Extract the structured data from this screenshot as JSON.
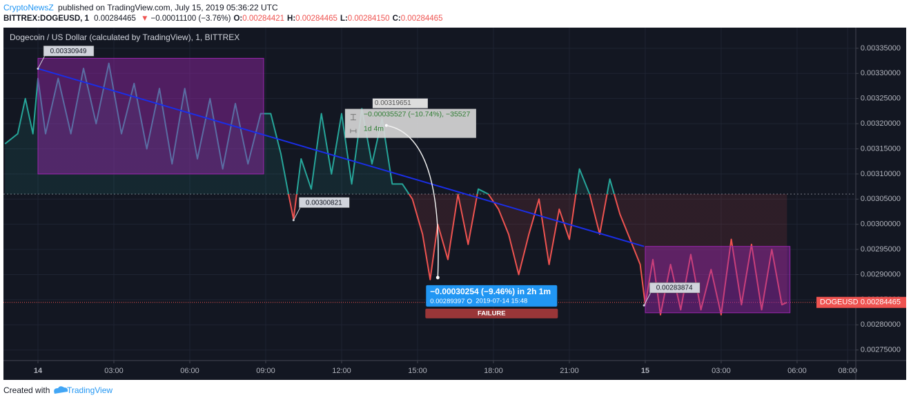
{
  "header": {
    "author": "CryptoNewsZ",
    "published": "published on TradingView.com, July 15, 2019 05:36:22 UTC",
    "symbol": "BITTREX:DOGEUSD, 1",
    "last": "0.00284465",
    "change": "−0.00011100 (−3.76%)",
    "ohlc": [
      {
        "label": "O:",
        "value": "0.00284421"
      },
      {
        "label": "H:",
        "value": "0.00284465"
      },
      {
        "label": "L:",
        "value": "0.00284150"
      },
      {
        "label": "C:",
        "value": "0.00284465"
      }
    ]
  },
  "chart_data": {
    "type": "line",
    "title": "Dogecoin / US Dollar (calculated by TradingView), 1, BITTREX",
    "x": [
      -1.3,
      -0.8,
      -0.5,
      -0.2,
      0,
      0.3,
      0.8,
      1.3,
      1.8,
      2.3,
      2.8,
      3.3,
      3.8,
      4.3,
      4.8,
      5.3,
      5.8,
      6.3,
      6.8,
      7.3,
      7.8,
      8.3,
      8.8,
      9.2,
      9.6,
      9.9,
      10.1,
      10.4,
      10.8,
      11.2,
      11.6,
      12.0,
      12.4,
      12.8,
      13.2,
      13.6,
      14.0,
      14.4,
      14.8,
      15.2,
      15.5,
      15.8,
      16.2,
      16.6,
      17.0,
      17.4,
      17.8,
      18.2,
      18.6,
      19.0,
      19.4,
      19.8,
      20.2,
      20.6,
      21.0,
      21.4,
      21.8,
      22.2,
      22.6,
      23.0,
      23.4,
      23.8,
      24.0,
      24.3,
      24.6,
      25.0,
      25.4,
      25.8,
      26.2,
      26.6,
      27.0,
      27.4,
      27.8,
      28.2,
      28.6,
      29.0,
      29.4,
      29.6
    ],
    "series": [
      {
        "name": "DOGEUSD",
        "color_above": "#26a69a",
        "color_below": "#ef5350",
        "values": [
          0.00316,
          0.00318,
          0.00325,
          0.00318,
          0.00329,
          0.00318,
          0.00329,
          0.00318,
          0.00331,
          0.0032,
          0.00332,
          0.00318,
          0.00328,
          0.00315,
          0.00327,
          0.00312,
          0.00327,
          0.00313,
          0.00325,
          0.00311,
          0.00324,
          0.00312,
          0.00322,
          0.00322,
          0.00314,
          0.00306,
          0.00301,
          0.00313,
          0.00307,
          0.00322,
          0.0031,
          0.00322,
          0.00308,
          0.00323,
          0.00312,
          0.00321,
          0.00308,
          0.00308,
          0.00305,
          0.00298,
          0.00289,
          0.003,
          0.00293,
          0.00306,
          0.00296,
          0.00307,
          0.00306,
          0.00303,
          0.00298,
          0.0029,
          0.00298,
          0.00305,
          0.00292,
          0.00303,
          0.00297,
          0.00311,
          0.00306,
          0.00298,
          0.00309,
          0.00302,
          0.00297,
          0.00292,
          0.00284,
          0.00293,
          0.00282,
          0.00292,
          0.00283,
          0.00294,
          0.00283,
          0.00291,
          0.00282,
          0.00297,
          0.00284,
          0.00296,
          0.00283,
          0.00295,
          0.00284,
          0.00284465
        ]
      }
    ],
    "baseline": 0.00306,
    "xlim": [
      -1.364,
      32.32
    ],
    "xticks": [
      {
        "value": 0,
        "label": "14"
      },
      {
        "value": 3,
        "label": "03:00"
      },
      {
        "value": 6,
        "label": "06:00"
      },
      {
        "value": 9,
        "label": "09:00"
      },
      {
        "value": 12,
        "label": "12:00"
      },
      {
        "value": 15,
        "label": "15:00"
      },
      {
        "value": 18,
        "label": "18:00"
      },
      {
        "value": 21,
        "label": "21:00"
      },
      {
        "value": 24,
        "label": "15"
      },
      {
        "value": 27,
        "label": "03:00"
      },
      {
        "value": 30,
        "label": "06:00"
      },
      {
        "value": 32,
        "label": "08:00"
      }
    ],
    "ylim": [
      0.002729,
      0.003391
    ],
    "yticks": [
      {
        "value": 0.00335,
        "label": "0.00335000"
      },
      {
        "value": 0.0033,
        "label": "0.00330000"
      },
      {
        "value": 0.00325,
        "label": "0.00325000"
      },
      {
        "value": 0.0032,
        "label": "0.00320000"
      },
      {
        "value": 0.00315,
        "label": "0.00315000"
      },
      {
        "value": 0.0031,
        "label": "0.00310000"
      },
      {
        "value": 0.00305,
        "label": "0.00305000"
      },
      {
        "value": 0.003,
        "label": "0.00300000"
      },
      {
        "value": 0.00295,
        "label": "0.00295000"
      },
      {
        "value": 0.0029,
        "label": "0.00290000"
      },
      {
        "value": 0.00285,
        "label": "0.00285000"
      },
      {
        "value": 0.0028,
        "label": "0.00280000"
      },
      {
        "value": 0.00275,
        "label": "0.00275000"
      }
    ],
    "grid": true,
    "boxes": [
      {
        "x": [
          0,
          8.92
        ],
        "values": [
          0.0031,
          0.00333
        ],
        "color": "#9c27b0"
      },
      {
        "x": [
          24,
          29.72
        ],
        "values": [
          0.002824,
          0.002956
        ],
        "color": "#9c27b0"
      }
    ],
    "trend_line": {
      "x": [
        0,
        23.95
      ],
      "values": [
        0.00330949,
        0.002956
      ],
      "color": "#1a2ee8"
    },
    "price_labels": [
      {
        "x": 0,
        "value": 0.00330949
      },
      {
        "x": 10.1,
        "value": 0.00300821
      },
      {
        "x": 23.95,
        "value": 0.00283874
      }
    ],
    "range_tool": {
      "x": 13.77,
      "value": 0.00319651,
      "change": "−0.00035527 (−10.74%), −35527",
      "duration": "1d 4m"
    },
    "measure": {
      "x": 15.8,
      "value": 0.00289397,
      "text": "−0.00030254 (−9.46%) in 2h 1m",
      "time": "2019-07-14  15:48",
      "status": "FAILURE"
    }
  },
  "footer": {
    "created": "Created with",
    "brand": "TradingView"
  }
}
